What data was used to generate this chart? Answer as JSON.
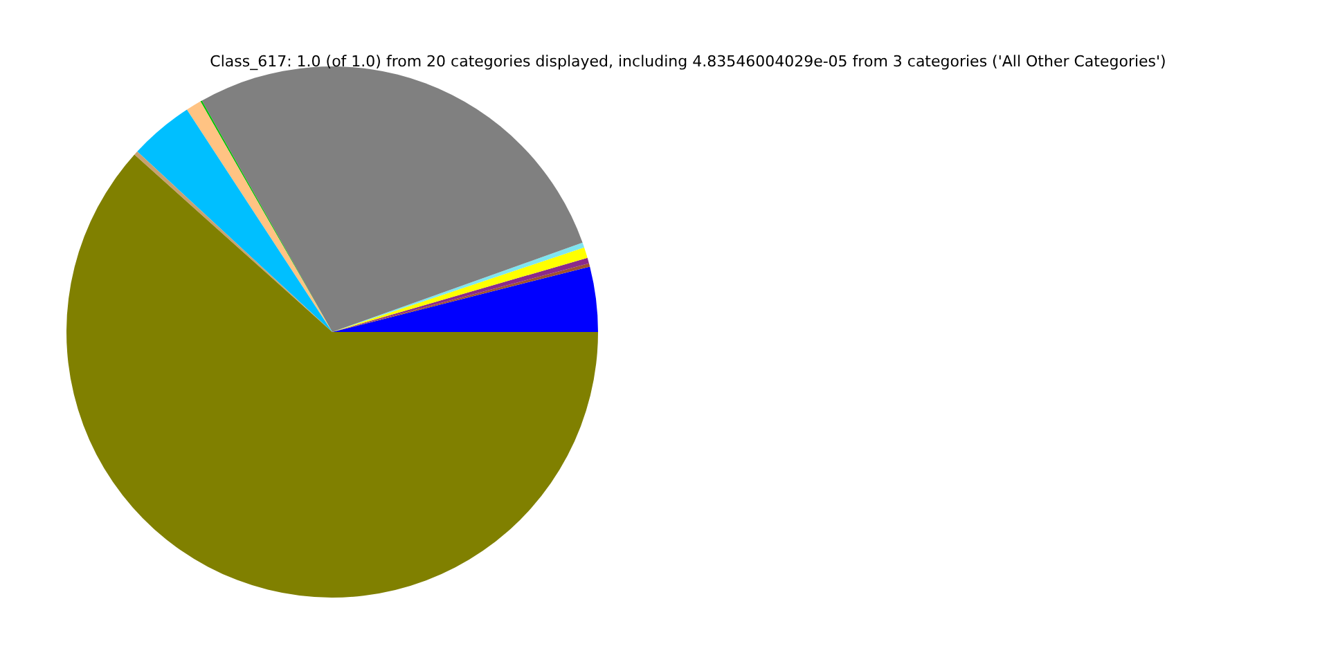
{
  "chart_data": {
    "type": "pie",
    "title": "Class_617: 1.0 (of 1.0) from 20 categories displayed, including 4.83546004029e-05 from 3 categories ('All Other Categories')",
    "categories": [
      null,
      null,
      null,
      null,
      null,
      null,
      null,
      null,
      null,
      null,
      null
    ],
    "values": [
      3.96,
      0.2,
      0.35,
      0.65,
      0.3,
      27.7,
      0.1,
      0.95,
      3.9,
      0.25,
      61.64
    ],
    "colors": [
      "#0000ff",
      "#a0522d",
      "#8b2a8b",
      "#ffff00",
      "#7fe5f0",
      "#808080",
      "#00c000",
      "#ffc383",
      "#00bfff",
      "#c8a070",
      "#808000"
    ]
  }
}
